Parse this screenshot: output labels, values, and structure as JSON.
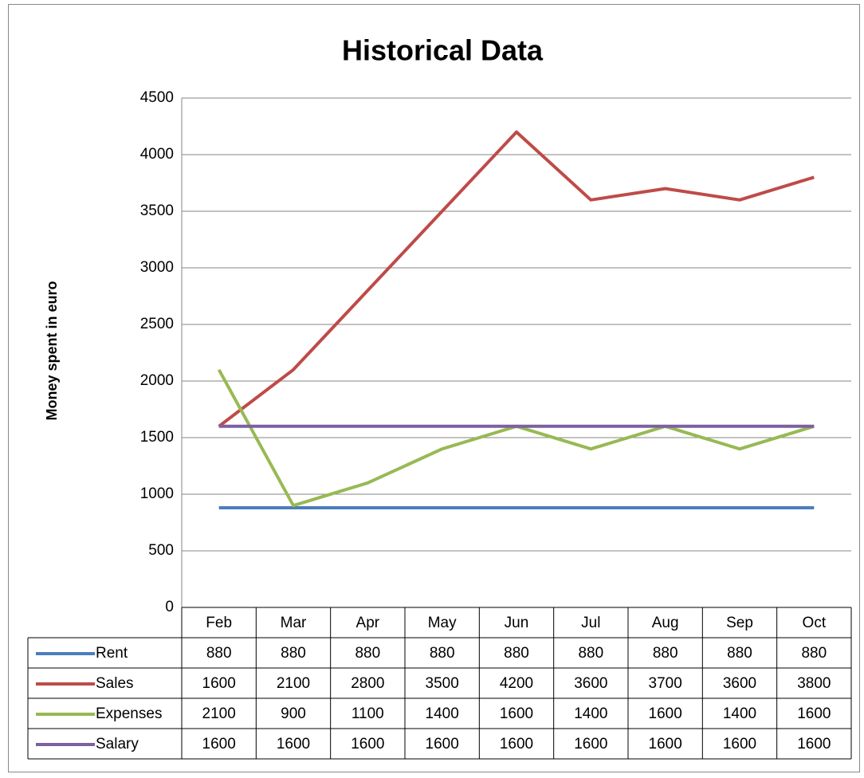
{
  "chart_data": {
    "type": "line",
    "title": "Historical Data",
    "y_label": "Money spent in euro",
    "categories": [
      "Feb",
      "Mar",
      "Apr",
      "May",
      "Jun",
      "Jul",
      "Aug",
      "Sep",
      "Oct"
    ],
    "series": [
      {
        "name": "Rent",
        "color": "#4a7ebb",
        "values": [
          880,
          880,
          880,
          880,
          880,
          880,
          880,
          880,
          880
        ]
      },
      {
        "name": "Sales",
        "color": "#be4b48",
        "values": [
          1600,
          2100,
          2800,
          3500,
          4200,
          3600,
          3700,
          3600,
          3800
        ]
      },
      {
        "name": "Expenses",
        "color": "#98b954",
        "values": [
          2100,
          900,
          1100,
          1400,
          1600,
          1400,
          1600,
          1400,
          1600
        ]
      },
      {
        "name": "Salary",
        "color": "#7d60a0",
        "values": [
          1600,
          1600,
          1600,
          1600,
          1600,
          1600,
          1600,
          1600,
          1600
        ]
      }
    ],
    "ylim": [
      0,
      4500
    ],
    "yticks": [
      0,
      500,
      1000,
      1500,
      2000,
      2500,
      3000,
      3500,
      4000,
      4500
    ],
    "grid": true,
    "data_table": true
  }
}
